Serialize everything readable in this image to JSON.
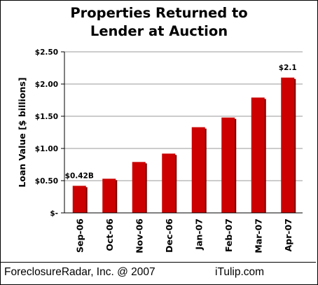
{
  "title_lines": [
    "Properties Returned to",
    "Lender at Auction"
  ],
  "footer": {
    "credit": "ForeclosureRadar, Inc. @ 2007",
    "site": "iTulip.com"
  },
  "colors": {
    "bar": "#cc0000",
    "bar_shadow": "#7a0000",
    "grid": "#999999"
  },
  "chart_data": {
    "type": "bar",
    "title": "Properties Returned to Lender at Auction",
    "xlabel": "",
    "ylabel": "Loan Value [$ billions]",
    "categories": [
      "Sep-06",
      "Oct-06",
      "Nov-06",
      "Dec-06",
      "Jan-07",
      "Feb-07",
      "Mar-07",
      "Apr-07"
    ],
    "values": [
      0.42,
      0.53,
      0.79,
      0.92,
      1.33,
      1.48,
      1.79,
      2.1
    ],
    "ylim": [
      0,
      2.5
    ],
    "yticks": [
      0,
      0.5,
      1.0,
      1.5,
      2.0,
      2.5
    ],
    "ytick_labels": [
      "$-",
      "$0.50",
      "$1.00",
      "$1.50",
      "$2.00",
      "$2.50"
    ],
    "data_labels": [
      {
        "index": 0,
        "text": "$0.42B"
      },
      {
        "index": 7,
        "text": "$2.1"
      }
    ],
    "grid": true,
    "legend": "none"
  }
}
